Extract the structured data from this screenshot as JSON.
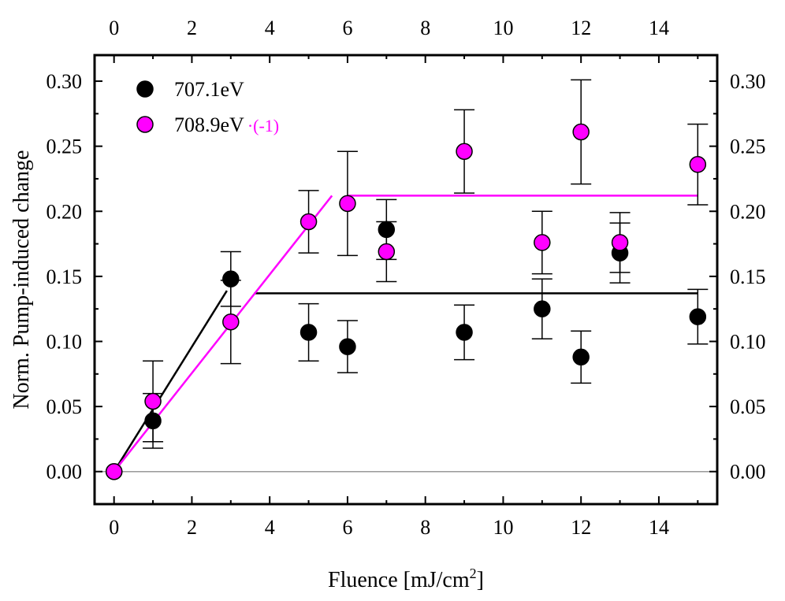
{
  "chart_data": {
    "type": "scatter",
    "title": "",
    "xlabel_main": "Fluence [mJ/cm",
    "xlabel_sup": "2",
    "xlabel_end": "]",
    "ylabel": "Norm. Pump-induced change",
    "xlim": [
      -0.5,
      15.5
    ],
    "ylim": [
      -0.025,
      0.32
    ],
    "x_ticks": [
      0,
      2,
      4,
      6,
      8,
      10,
      12,
      14
    ],
    "x_tick_labels": [
      "0",
      "2",
      "4",
      "6",
      "8",
      "10",
      "12",
      "14"
    ],
    "y_ticks": [
      0.0,
      0.05,
      0.1,
      0.15,
      0.2,
      0.25,
      0.3
    ],
    "y_tick_labels": [
      "0.00",
      "0.05",
      "0.10",
      "0.15",
      "0.20",
      "0.25",
      "0.30"
    ],
    "zero_line": 0.0,
    "series": [
      {
        "name": "707.1eV",
        "color": "#000000",
        "points": [
          {
            "x": 0,
            "y": 0.0,
            "err": 0
          },
          {
            "x": 1,
            "y": 0.039,
            "err": 0.021
          },
          {
            "x": 3,
            "y": 0.148,
            "err": 0.021
          },
          {
            "x": 5,
            "y": 0.107,
            "err": 0.022
          },
          {
            "x": 6,
            "y": 0.096,
            "err": 0.02
          },
          {
            "x": 7,
            "y": 0.186,
            "err": 0.023
          },
          {
            "x": 9,
            "y": 0.107,
            "err": 0.021
          },
          {
            "x": 11,
            "y": 0.125,
            "err": 0.023
          },
          {
            "x": 12,
            "y": 0.088,
            "err": 0.02
          },
          {
            "x": 13,
            "y": 0.168,
            "err": 0.023
          },
          {
            "x": 15,
            "y": 0.119,
            "err": 0.021
          }
        ],
        "fit": [
          {
            "x1": 0,
            "y1": 0.0,
            "x2": 2.9,
            "y2": 0.139
          },
          {
            "x1": 3.6,
            "y1": 0.137,
            "x2": 15.0,
            "y2": 0.137
          }
        ]
      },
      {
        "name": "708.9eV",
        "suffix": "·(-1)",
        "color": "#ff00ff",
        "points": [
          {
            "x": 0,
            "y": 0.0,
            "err": 0
          },
          {
            "x": 1,
            "y": 0.054,
            "err": 0.031
          },
          {
            "x": 3,
            "y": 0.115,
            "err": 0.032
          },
          {
            "x": 5,
            "y": 0.192,
            "err": 0.024
          },
          {
            "x": 6,
            "y": 0.206,
            "err": 0.04
          },
          {
            "x": 7,
            "y": 0.169,
            "err": 0.023
          },
          {
            "x": 9,
            "y": 0.246,
            "err": 0.032
          },
          {
            "x": 11,
            "y": 0.176,
            "err": 0.024
          },
          {
            "x": 12,
            "y": 0.261,
            "err": 0.04
          },
          {
            "x": 13,
            "y": 0.176,
            "err": 0.023
          },
          {
            "x": 15,
            "y": 0.236,
            "err": 0.031
          }
        ],
        "fit": [
          {
            "x1": 0,
            "y1": 0.0,
            "x2": 5.6,
            "y2": 0.212
          },
          {
            "x1": 6.0,
            "y1": 0.212,
            "x2": 15.0,
            "y2": 0.212
          }
        ]
      }
    ],
    "legend_position": "top-left"
  }
}
